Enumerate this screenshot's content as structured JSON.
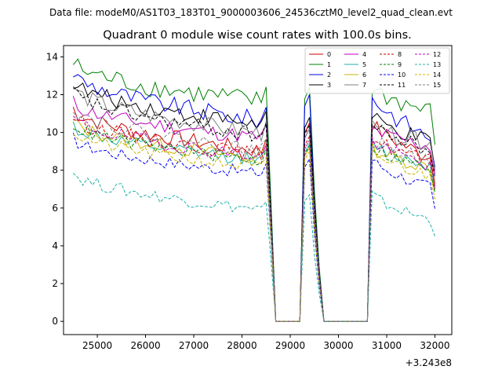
{
  "chart_data": {
    "type": "line",
    "suptitle": "Data file: modeM0/AS1T03_183T01_9000003606_24536cztM0_level2_quad_clean.evt",
    "title": "Quadrant 0 module wise count rates with 100.0s bins.",
    "xlabel": "",
    "ylabel": "",
    "offset_label": "+3.243e8",
    "xlim": [
      24300,
      32350
    ],
    "ylim": [
      -0.7,
      14.6
    ],
    "xticks": [
      25000,
      26000,
      27000,
      28000,
      29000,
      30000,
      31000,
      32000
    ],
    "xtick_labels": [
      "25000",
      "26000",
      "27000",
      "28000",
      "29000",
      "30000",
      "31000",
      "32000"
    ],
    "yticks": [
      0,
      2,
      4,
      6,
      8,
      10,
      12,
      14
    ],
    "ytick_labels": [
      "0",
      "2",
      "4",
      "6",
      "8",
      "10",
      "12",
      "14"
    ],
    "legend_position": "upper right",
    "bin_width_s": 100,
    "x_start": 24500,
    "x_step": 100,
    "x_end": 32000,
    "zero_gaps": [
      [
        28700,
        29200
      ],
      [
        29700,
        30600
      ]
    ],
    "series": [
      {
        "name": "0",
        "color": "#d00000",
        "dash": "solid",
        "start": 11.3,
        "mid": 9.0,
        "end": 8.6,
        "post_peak": 10.5,
        "drift": 2.0
      },
      {
        "name": "1",
        "color": "#008000",
        "dash": "solid",
        "start": 13.7,
        "mid": 11.6,
        "end": 11.0,
        "post_peak": 12.4,
        "drift": 2.5
      },
      {
        "name": "2",
        "color": "#0000ee",
        "dash": "solid",
        "start": 13.2,
        "mid": 10.6,
        "end": 9.6,
        "post_peak": 12.0,
        "drift": 2.2
      },
      {
        "name": "3",
        "color": "#000000",
        "dash": "solid",
        "start": 12.7,
        "mid": 10.4,
        "end": 9.4,
        "post_peak": 10.8,
        "drift": 2.0
      },
      {
        "name": "4",
        "color": "#c000c0",
        "dash": "solid",
        "start": 11.6,
        "mid": 9.7,
        "end": 9.2,
        "post_peak": 10.2,
        "drift": 1.8
      },
      {
        "name": "5",
        "color": "#20b2aa",
        "dash": "solid",
        "start": 10.4,
        "mid": 8.5,
        "end": 8.2,
        "post_peak": 9.4,
        "drift": 1.6
      },
      {
        "name": "6",
        "color": "#c8b400",
        "dash": "solid",
        "start": 10.6,
        "mid": 8.6,
        "end": 8.1,
        "post_peak": 9.2,
        "drift": 1.7
      },
      {
        "name": "7",
        "color": "#808080",
        "dash": "solid",
        "start": 12.4,
        "mid": 9.9,
        "end": 9.4,
        "post_peak": 10.2,
        "drift": 2.0
      },
      {
        "name": "8",
        "color": "#d00000",
        "dash": "dashed",
        "start": 10.9,
        "mid": 8.8,
        "end": 8.4,
        "post_peak": 9.8,
        "drift": 1.8
      },
      {
        "name": "9",
        "color": "#008000",
        "dash": "dashed",
        "start": 10.5,
        "mid": 8.5,
        "end": 8.0,
        "post_peak": 9.3,
        "drift": 1.6
      },
      {
        "name": "10",
        "color": "#0000ee",
        "dash": "dashed",
        "start": 9.7,
        "mid": 7.8,
        "end": 7.0,
        "post_peak": 8.6,
        "drift": 1.5
      },
      {
        "name": "11",
        "color": "#000000",
        "dash": "dashed",
        "start": 12.2,
        "mid": 9.8,
        "end": 9.0,
        "post_peak": 10.4,
        "drift": 1.9
      },
      {
        "name": "12",
        "color": "#c000c0",
        "dash": "dashed",
        "start": 10.8,
        "mid": 8.7,
        "end": 8.2,
        "post_peak": 9.6,
        "drift": 1.7
      },
      {
        "name": "13",
        "color": "#20b2aa",
        "dash": "dashed",
        "start": 7.9,
        "mid": 5.9,
        "end": 5.3,
        "post_peak": 6.7,
        "drift": 1.5
      },
      {
        "name": "14",
        "color": "#c8b400",
        "dash": "dashed",
        "start": 10.1,
        "mid": 8.1,
        "end": 7.6,
        "post_peak": 9.0,
        "drift": 1.6
      },
      {
        "name": "15",
        "color": "#808080",
        "dash": "dashed",
        "start": 11.4,
        "mid": 9.0,
        "end": 8.5,
        "post_peak": 9.6,
        "drift": 1.8
      }
    ]
  }
}
